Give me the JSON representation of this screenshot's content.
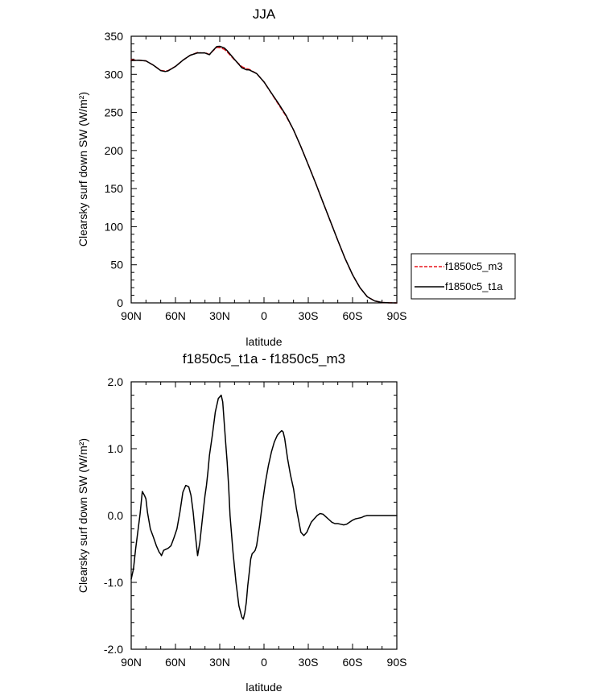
{
  "chart_data": [
    {
      "type": "line",
      "title": "JJA",
      "xlabel": "latitude",
      "ylabel": "Clearsky surf down SW (W/m²)",
      "xlim": [
        90,
        -90
      ],
      "ylim": [
        0,
        350
      ],
      "x_ticks": [
        {
          "value": 90,
          "label": "90N"
        },
        {
          "value": 60,
          "label": "60N"
        },
        {
          "value": 30,
          "label": "30N"
        },
        {
          "value": 0,
          "label": "0"
        },
        {
          "value": -30,
          "label": "30S"
        },
        {
          "value": -60,
          "label": "60S"
        },
        {
          "value": -90,
          "label": "90S"
        }
      ],
      "y_ticks": [
        {
          "value": 0,
          "label": "0"
        },
        {
          "value": 50,
          "label": "50"
        },
        {
          "value": 100,
          "label": "100"
        },
        {
          "value": 150,
          "label": "150"
        },
        {
          "value": 200,
          "label": "200"
        },
        {
          "value": 250,
          "label": "250"
        },
        {
          "value": 300,
          "label": "300"
        },
        {
          "value": 350,
          "label": "350"
        }
      ],
      "legend_position": "right",
      "series": [
        {
          "name": "f1850c5_m3",
          "color": "#e8141c",
          "dash": "dashed",
          "x": [
            90,
            85,
            80,
            75,
            70,
            67,
            65,
            60,
            55,
            50,
            45,
            42,
            40,
            37,
            35,
            32,
            30,
            27,
            25,
            20,
            15,
            12,
            10,
            5,
            0,
            -5,
            -10,
            -15,
            -20,
            -25,
            -30,
            -35,
            -40,
            -45,
            -50,
            -55,
            -60,
            -62,
            -65,
            -70,
            -75,
            -80,
            -85,
            -90
          ],
          "values": [
            318.9,
            318.5,
            317.8,
            312.0,
            305.2,
            304.2,
            305.0,
            310.5,
            318.5,
            325.0,
            328.6,
            328.0,
            328.5,
            326.0,
            330.0,
            335.5,
            335.0,
            333.0,
            329.5,
            319.0,
            310.0,
            307.5,
            306.5,
            301.0,
            290.0,
            275.0,
            260.0,
            245.0,
            227.0,
            205.0,
            181.5,
            157.0,
            132.0,
            107.0,
            82.0,
            58.0,
            37.0,
            30.0,
            20.0,
            8.0,
            2.5,
            0.5,
            0.1,
            0.0
          ]
        },
        {
          "name": "f1850c5_t1a",
          "color": "#000000",
          "dash": "solid",
          "x": [
            90,
            85,
            80,
            75,
            70,
            67,
            65,
            60,
            55,
            50,
            45,
            42,
            40,
            37,
            35,
            32,
            30,
            27,
            25,
            20,
            15,
            12,
            10,
            5,
            0,
            -5,
            -10,
            -15,
            -20,
            -25,
            -30,
            -35,
            -40,
            -45,
            -50,
            -55,
            -60,
            -62,
            -65,
            -70,
            -75,
            -80,
            -85,
            -90
          ],
          "values": [
            318.0,
            318.6,
            317.6,
            312.0,
            304.8,
            303.7,
            304.5,
            310.3,
            318.5,
            325.0,
            328.2,
            328.1,
            328.0,
            325.8,
            330.4,
            336.5,
            336.8,
            334.8,
            331.2,
            319.8,
            308.5,
            306.0,
            305.8,
            301.0,
            290.0,
            275.5,
            261.3,
            246.0,
            227.0,
            205.0,
            181.2,
            157.0,
            132.0,
            107.0,
            82.0,
            58.0,
            37.0,
            30.0,
            20.0,
            8.0,
            2.5,
            0.5,
            0.1,
            0.0
          ]
        }
      ]
    },
    {
      "type": "line",
      "title": "f1850c5_t1a - f1850c5_m3",
      "xlabel": "latitude",
      "ylabel": "Clearsky surf down SW (W/m²)",
      "xlim": [
        90,
        -90
      ],
      "ylim": [
        -2.0,
        2.0
      ],
      "x_ticks": [
        {
          "value": 90,
          "label": "90N"
        },
        {
          "value": 60,
          "label": "60N"
        },
        {
          "value": 30,
          "label": "30N"
        },
        {
          "value": 0,
          "label": "0"
        },
        {
          "value": -30,
          "label": "30S"
        },
        {
          "value": -60,
          "label": "60S"
        },
        {
          "value": -90,
          "label": "90S"
        }
      ],
      "y_ticks": [
        {
          "value": -2.0,
          "label": "-2.0"
        },
        {
          "value": -1.0,
          "label": "-1.0"
        },
        {
          "value": 0.0,
          "label": "0.0"
        },
        {
          "value": 1.0,
          "label": "1.0"
        },
        {
          "value": 2.0,
          "label": "2.0"
        }
      ],
      "series": [
        {
          "name": "f1850c5_t1a - f1850c5_m3",
          "color": "#000000",
          "dash": "solid",
          "x": [
            90,
            88.5,
            87,
            85,
            84,
            82.5,
            81,
            80,
            79,
            77,
            75,
            73,
            71,
            70,
            69.5,
            68,
            65,
            63,
            61,
            59,
            57,
            55,
            53,
            51,
            49.5,
            48,
            46.5,
            45,
            43.5,
            42,
            41,
            40,
            39,
            38,
            37,
            35,
            33,
            31,
            29,
            28,
            27,
            26,
            25,
            24,
            23,
            21,
            19,
            17,
            15,
            14,
            13,
            12,
            11,
            10,
            9,
            8,
            7,
            6,
            5,
            3,
            1,
            -1,
            -3,
            -5,
            -7,
            -9,
            -11,
            -12,
            -13,
            -14,
            -15,
            -16,
            -18,
            -20,
            -22,
            -25,
            -27,
            -29,
            -30,
            -31,
            -32,
            -34,
            -36,
            -38,
            -40,
            -42,
            -44,
            -46,
            -48,
            -50,
            -52,
            -54,
            -56,
            -58,
            -60,
            -62,
            -64,
            -66,
            -68,
            -70,
            -72,
            -74,
            -76,
            -78,
            -80,
            -82,
            -85,
            -88,
            -90
          ],
          "values": [
            -0.95,
            -0.8,
            -0.5,
            -0.15,
            0.02,
            0.36,
            0.3,
            0.25,
            0.05,
            -0.2,
            -0.32,
            -0.45,
            -0.55,
            -0.58,
            -0.6,
            -0.52,
            -0.49,
            -0.45,
            -0.33,
            -0.2,
            0.05,
            0.35,
            0.45,
            0.43,
            0.3,
            0.05,
            -0.3,
            -0.6,
            -0.4,
            -0.1,
            0.1,
            0.3,
            0.45,
            0.65,
            0.9,
            1.2,
            1.55,
            1.75,
            1.8,
            1.7,
            1.4,
            1.1,
            0.8,
            0.45,
            0.0,
            -0.55,
            -1.0,
            -1.35,
            -1.52,
            -1.55,
            -1.45,
            -1.3,
            -1.05,
            -0.85,
            -0.65,
            -0.57,
            -0.55,
            -0.52,
            -0.45,
            -0.15,
            0.2,
            0.5,
            0.75,
            0.95,
            1.1,
            1.2,
            1.25,
            1.27,
            1.25,
            1.15,
            1.0,
            0.85,
            0.6,
            0.4,
            0.1,
            -0.25,
            -0.3,
            -0.25,
            -0.2,
            -0.15,
            -0.1,
            -0.05,
            0.0,
            0.03,
            0.02,
            -0.02,
            -0.06,
            -0.1,
            -0.12,
            -0.12,
            -0.13,
            -0.14,
            -0.13,
            -0.1,
            -0.07,
            -0.05,
            -0.04,
            -0.03,
            -0.01,
            0.0,
            0.0,
            0.0,
            0.0,
            0.0,
            0.0,
            0.0,
            0.0,
            0.0,
            0.0
          ]
        }
      ]
    }
  ]
}
